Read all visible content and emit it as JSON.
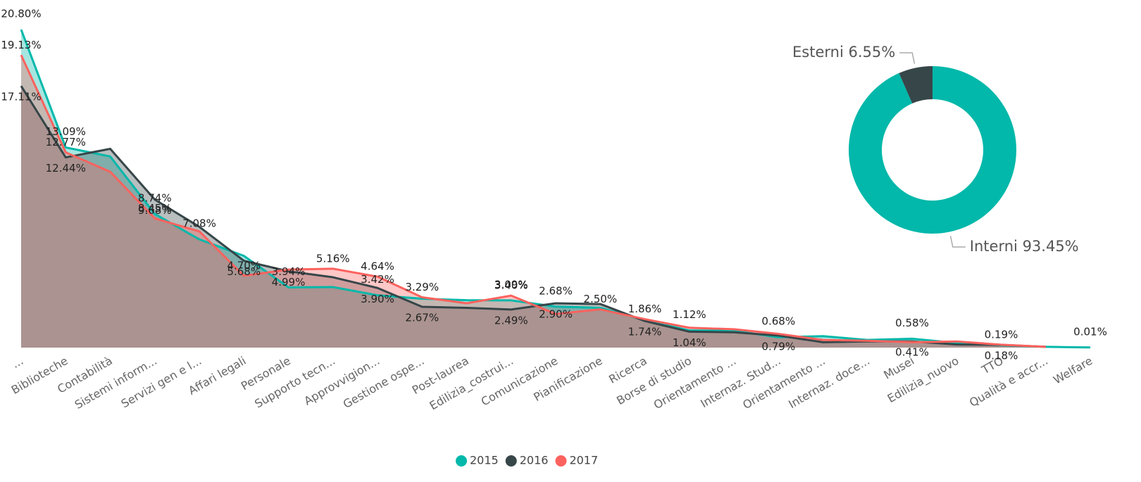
{
  "chart_data": [
    {
      "type": "area",
      "categories": [
        "...",
        "Biblioteche",
        "Contabilità",
        "Sistemi inform...",
        "Servizi gen e l...",
        "Affari legali",
        "Personale",
        "Supporto tecn...",
        "Approvvigion...",
        "Gestione ospe...",
        "Post-laurea",
        "Edilizia_costrui...",
        "Comunicazione",
        "Pianificazione",
        "Ricerca",
        "Borse di studio",
        "Orientamento ...",
        "Internaz. Stud...",
        "Orientamento ...",
        "Internaz. doce...",
        "Musei",
        "Edilizia_nuovo",
        "TTO",
        "Qualità e accr...",
        "Welfare"
      ],
      "ylim": [
        0,
        20.8
      ],
      "legend": "bottom",
      "series": [
        {
          "name": "2015",
          "color": "#01B8AA",
          "values": [
            20.8,
            13.09,
            12.5,
            8.74,
            7.08,
            6.0,
            3.94,
            3.96,
            3.42,
            3.2,
            3.1,
            3.09,
            2.68,
            2.6,
            1.8,
            1.12,
            1.1,
            0.68,
            0.75,
            0.5,
            0.58,
            0.3,
            0.15,
            0.05,
            0.01
          ],
          "value_labels": [
            "20.80%",
            "13.09%",
            null,
            "8.74%",
            "7.08%",
            null,
            "3.94%",
            null,
            "3.42%",
            null,
            null,
            "3.09%",
            "2.68%",
            null,
            null,
            "1.12%",
            null,
            "0.68%",
            null,
            null,
            "0.58%",
            null,
            null,
            null,
            "0.01%"
          ]
        },
        {
          "name": "2016",
          "color": "#374649",
          "values": [
            17.11,
            12.44,
            13.0,
            9.68,
            7.9,
            5.68,
            4.99,
            4.6,
            3.9,
            2.67,
            2.6,
            2.49,
            2.9,
            2.85,
            1.74,
            1.04,
            1.0,
            0.79,
            0.35,
            0.4,
            0.41,
            0.2,
            0.18,
            0.05,
            null
          ],
          "value_labels": [
            "17.11%",
            "12.44%",
            null,
            "9.68%",
            null,
            "5.68%",
            "4.99%",
            null,
            "3.90%",
            "2.67%",
            null,
            "2.49%",
            "2.90%",
            null,
            "1.74%",
            "1.04%",
            null,
            "0.79%",
            null,
            null,
            "0.41%",
            null,
            "0.18%",
            null,
            null
          ]
        },
        {
          "name": "2017",
          "color": "#FD625E",
          "values": [
            19.13,
            12.77,
            11.5,
            8.45,
            7.6,
            4.7,
            5.1,
            5.16,
            4.64,
            3.29,
            2.9,
            3.4,
            2.2,
            2.5,
            1.86,
            1.3,
            1.2,
            0.9,
            0.5,
            0.45,
            0.35,
            0.4,
            0.19,
            0.05,
            null
          ],
          "value_labels": [
            "19.13%",
            "12.77%",
            null,
            "8.45%",
            null,
            "4.70%",
            null,
            "5.16%",
            "4.64%",
            "3.29%",
            null,
            "3.40%",
            null,
            "2.50%",
            "1.86%",
            null,
            null,
            null,
            null,
            null,
            null,
            null,
            "0.19%",
            null,
            null
          ]
        }
      ]
    },
    {
      "type": "donut",
      "categories": [
        "Interni",
        "Esterni"
      ],
      "values": [
        93.45,
        6.55
      ],
      "value_labels": [
        "93.45%",
        "6.55%"
      ],
      "colors": [
        "#01B8AA",
        "#374649"
      ]
    }
  ]
}
